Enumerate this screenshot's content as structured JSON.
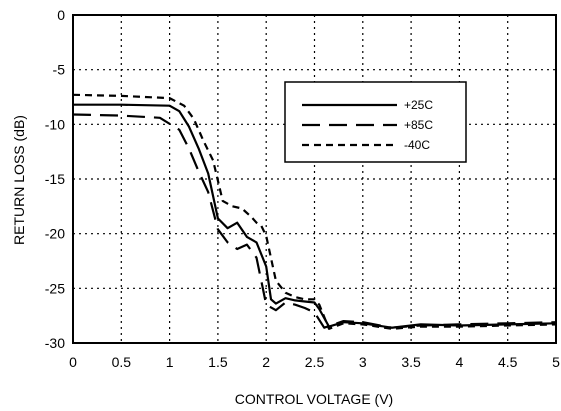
{
  "chart_data": {
    "type": "line",
    "title": "",
    "xlabel": "CONTROL VOLTAGE (V)",
    "ylabel": "RETURN LOSS (dB)",
    "xlim": [
      0,
      5
    ],
    "ylim": [
      -30,
      0
    ],
    "xticks": [
      "0",
      "0.5",
      "1",
      "1.5",
      "2",
      "2.5",
      "3",
      "3.5",
      "4",
      "4.5",
      "5"
    ],
    "yticks": [
      "0",
      "-5",
      "-10",
      "-15",
      "-20",
      "-25",
      "-30"
    ],
    "grid": true,
    "legend_position": "top-right",
    "series": [
      {
        "name": "+25C",
        "dash": "solid",
        "points": [
          [
            0,
            -8.2
          ],
          [
            0.5,
            -8.2
          ],
          [
            1.0,
            -8.3
          ],
          [
            1.1,
            -8.8
          ],
          [
            1.2,
            -10.2
          ],
          [
            1.3,
            -12.2
          ],
          [
            1.4,
            -14.5
          ],
          [
            1.5,
            -18.6
          ],
          [
            1.6,
            -19.5
          ],
          [
            1.7,
            -19.0
          ],
          [
            1.8,
            -20.3
          ],
          [
            1.9,
            -20.8
          ],
          [
            2.0,
            -23.0
          ],
          [
            2.05,
            -26.0
          ],
          [
            2.1,
            -26.4
          ],
          [
            2.2,
            -25.9
          ],
          [
            2.3,
            -26.1
          ],
          [
            2.4,
            -26.2
          ],
          [
            2.5,
            -26.3
          ],
          [
            2.55,
            -26.9
          ],
          [
            2.65,
            -28.5
          ],
          [
            2.8,
            -28.1
          ],
          [
            3.0,
            -28.2
          ],
          [
            3.3,
            -28.6
          ],
          [
            3.6,
            -28.3
          ],
          [
            4.0,
            -28.4
          ],
          [
            4.5,
            -28.3
          ],
          [
            5.0,
            -28.2
          ]
        ]
      },
      {
        "name": "+85C",
        "dash": "long-dash",
        "points": [
          [
            0,
            -9.1
          ],
          [
            0.5,
            -9.2
          ],
          [
            0.9,
            -9.4
          ],
          [
            1.1,
            -10.5
          ],
          [
            1.2,
            -12.2
          ],
          [
            1.3,
            -14.3
          ],
          [
            1.4,
            -16.2
          ],
          [
            1.5,
            -19.6
          ],
          [
            1.6,
            -20.8
          ],
          [
            1.7,
            -21.4
          ],
          [
            1.8,
            -21.0
          ],
          [
            1.9,
            -22.2
          ],
          [
            2.0,
            -26.5
          ],
          [
            2.1,
            -27.0
          ],
          [
            2.2,
            -26.3
          ],
          [
            2.3,
            -26.5
          ],
          [
            2.4,
            -26.8
          ],
          [
            2.5,
            -27.2
          ],
          [
            2.6,
            -28.6
          ],
          [
            2.8,
            -28.0
          ],
          [
            3.0,
            -28.1
          ],
          [
            3.3,
            -28.6
          ],
          [
            3.6,
            -28.4
          ],
          [
            4.0,
            -28.3
          ],
          [
            4.5,
            -28.2
          ],
          [
            5.0,
            -28.1
          ]
        ]
      },
      {
        "name": "-40C",
        "dash": "short-dash",
        "points": [
          [
            0,
            -7.3
          ],
          [
            0.5,
            -7.4
          ],
          [
            1.0,
            -7.6
          ],
          [
            1.15,
            -8.3
          ],
          [
            1.25,
            -9.5
          ],
          [
            1.35,
            -11.5
          ],
          [
            1.45,
            -13.3
          ],
          [
            1.55,
            -17.0
          ],
          [
            1.65,
            -17.5
          ],
          [
            1.75,
            -17.7
          ],
          [
            1.85,
            -18.5
          ],
          [
            1.9,
            -19.0
          ],
          [
            1.95,
            -19.3
          ],
          [
            2.0,
            -20.2
          ],
          [
            2.1,
            -24.3
          ],
          [
            2.2,
            -25.4
          ],
          [
            2.3,
            -25.8
          ],
          [
            2.4,
            -26.0
          ],
          [
            2.5,
            -26.0
          ],
          [
            2.55,
            -26.5
          ],
          [
            2.65,
            -28.7
          ],
          [
            2.8,
            -28.2
          ],
          [
            3.0,
            -28.3
          ],
          [
            3.3,
            -28.7
          ],
          [
            3.6,
            -28.5
          ],
          [
            4.0,
            -28.5
          ],
          [
            4.5,
            -28.4
          ],
          [
            5.0,
            -28.3
          ]
        ]
      }
    ],
    "style": {
      "line_color": "#000000",
      "grid_color": "#000000",
      "background": "#ffffff"
    }
  }
}
